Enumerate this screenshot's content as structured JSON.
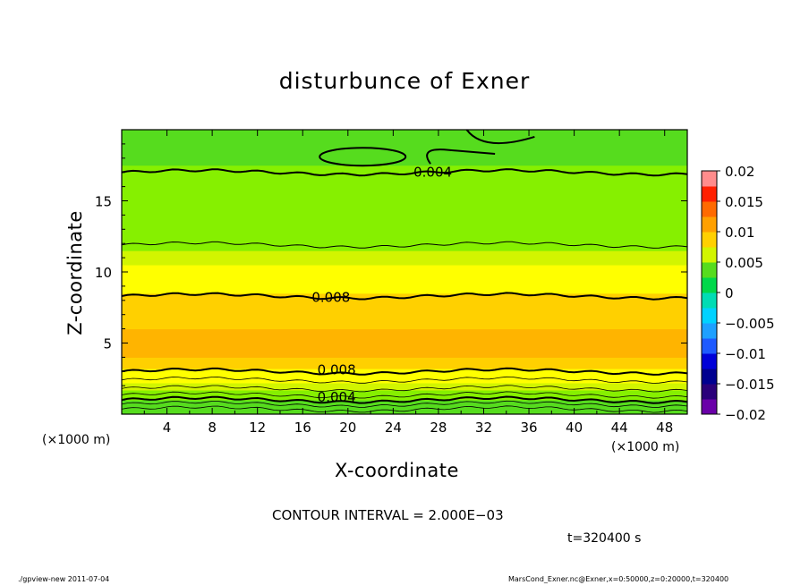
{
  "chart_data": {
    "type": "heatmap",
    "title": "disturbunce of Exner",
    "xlabel": "X-coordinate",
    "ylabel": "Z-coordinate",
    "x_unit": "(×1000 m)",
    "xlim": [
      0,
      50
    ],
    "ylim": [
      0,
      20
    ],
    "x_ticks": [
      4,
      8,
      12,
      16,
      20,
      24,
      28,
      32,
      36,
      40,
      44,
      48
    ],
    "y_ticks": [
      5,
      10,
      15
    ],
    "colorbar": {
      "levels": [
        0.02,
        0.015,
        0.01,
        0.005,
        0,
        -0.005,
        -0.01,
        -0.015,
        -0.02
      ],
      "labels": [
        "0.02",
        "0.015",
        "0.01",
        "0.005",
        "0",
        "−0.005",
        "−0.01",
        "−0.015",
        "−0.02"
      ]
    },
    "contour_interval": "CONTOUR INTERVAL = 2.000E−03",
    "contour_labels": [
      {
        "text": "0.004",
        "x": 27.5,
        "z": 17.0
      },
      {
        "text": "0.008",
        "x": 18.5,
        "z": 8.2
      },
      {
        "text": "0.008",
        "x": 19.0,
        "z": 3.1
      },
      {
        "text": "0.004",
        "x": 19.0,
        "z": 1.2
      }
    ],
    "profile_z": [
      0,
      0.3,
      0.7,
      1.0,
      1.3,
      1.7,
      2.2,
      2.7,
      3.2,
      4.0,
      5.0,
      6.0,
      6.5,
      7.0,
      8.0,
      8.5,
      9.5,
      10.5,
      11.5,
      12.5,
      13.5,
      14.5,
      15.5,
      16.5,
      17.5,
      18.5,
      20.0
    ],
    "profile_value": [
      0.0018,
      0.0024,
      0.0032,
      0.004,
      0.0048,
      0.0058,
      0.0068,
      0.0076,
      0.0082,
      0.0088,
      0.0093,
      0.0091,
      0.0087,
      0.0084,
      0.0081,
      0.0079,
      0.0074,
      0.0067,
      0.0061,
      0.0058,
      0.0055,
      0.0053,
      0.005,
      0.0045,
      0.0038,
      0.0031,
      0.0024
    ]
  },
  "time_label": "t=320400 s",
  "footer_left": "./gpview-new   2011-07-04",
  "footer_right": "MarsCond_Exner.nc@Exner,x=0:50000,z=0:20000,t=320400"
}
